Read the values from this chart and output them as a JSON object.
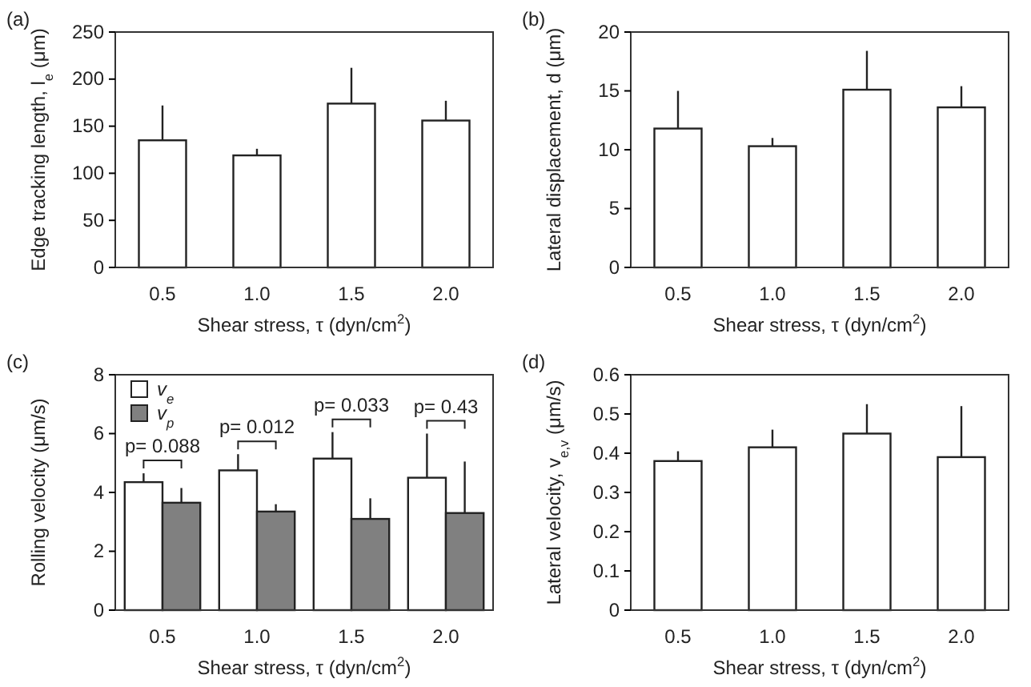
{
  "chart_data": [
    {
      "type": "bar",
      "categories": [
        "0.5",
        "1.0",
        "1.5",
        "2.0"
      ],
      "xlabel": "Shear stress, τ (dyn/cm$^{2}$)",
      "ylabel": "Edge tracking length, l$_{e}$ (μm)",
      "annotations": [
        "(a)"
      ],
      "ylim": [
        0,
        250
      ],
      "yticks": [
        0,
        50,
        100,
        150,
        200,
        250
      ],
      "grid": false,
      "legend": false,
      "series": [
        {
          "color": "#ffffff",
          "values": [
            135,
            119,
            174,
            156
          ],
          "errors": [
            [
              135,
              172
            ],
            [
              119,
              126
            ],
            [
              174,
              212
            ],
            [
              156,
              177
            ]
          ]
        }
      ]
    },
    {
      "type": "bar",
      "categories": [
        "0.5",
        "1.0",
        "1.5",
        "2.0"
      ],
      "xlabel": "Shear stress, τ (dyn/cm$^{2}$)",
      "ylabel": "Lateral displacement, d (μm)",
      "annotations": [
        "(b)"
      ],
      "ylim": [
        0,
        20
      ],
      "yticks": [
        0,
        5,
        10,
        15,
        20
      ],
      "grid": false,
      "legend": false,
      "series": [
        {
          "color": "#ffffff",
          "values": [
            11.8,
            10.3,
            15.1,
            13.6
          ],
          "errors": [
            [
              11.8,
              15.0
            ],
            [
              10.3,
              11.0
            ],
            [
              15.1,
              18.4
            ],
            [
              13.6,
              15.4
            ]
          ]
        }
      ]
    },
    {
      "type": "bar",
      "categories": [
        "0.5",
        "1.0",
        "1.5",
        "2.0"
      ],
      "xlabel": "Shear stress, τ (dyn/cm$^{2}$)",
      "ylabel": "Rolling velocity (μm/s)",
      "annotations": [
        "(c)",
        "p= 0.088",
        "p= 0.012",
        "p= 0.033",
        "p= 0.43"
      ],
      "ylim": [
        0,
        8
      ],
      "yticks": [
        0,
        2,
        4,
        6,
        8
      ],
      "grid": false,
      "legend": "top left",
      "series": [
        {
          "name": "v$_{e}$",
          "color": "#ffffff",
          "values": [
            4.35,
            4.75,
            5.15,
            4.5
          ],
          "errors": [
            [
              4.35,
              4.65
            ],
            [
              4.75,
              5.3
            ],
            [
              5.15,
              6.05
            ],
            [
              4.5,
              6.0
            ]
          ]
        },
        {
          "name": "v$_{p}$",
          "color": "#808080",
          "values": [
            3.65,
            3.35,
            3.1,
            3.3
          ],
          "errors": [
            [
              3.65,
              4.15
            ],
            [
              3.35,
              3.6
            ],
            [
              3.1,
              3.8
            ],
            [
              3.3,
              5.05
            ]
          ]
        }
      ]
    },
    {
      "type": "bar",
      "categories": [
        "0.5",
        "1.0",
        "1.5",
        "2.0"
      ],
      "xlabel": "Shear stress, τ (dyn/cm$^{2}$)",
      "ylabel": "Lateral velocity, v$_{e,v}$ (μm/s)",
      "annotations": [
        "(d)"
      ],
      "ylim": [
        0,
        0.6
      ],
      "yticks": [
        0,
        0.1,
        0.2,
        0.3,
        0.4,
        0.5,
        0.6
      ],
      "grid": false,
      "legend": false,
      "series": [
        {
          "color": "#ffffff",
          "values": [
            0.38,
            0.415,
            0.45,
            0.39
          ],
          "errors": [
            [
              0.38,
              0.405
            ],
            [
              0.415,
              0.46
            ],
            [
              0.45,
              0.525
            ],
            [
              0.39,
              0.52
            ]
          ]
        }
      ]
    }
  ]
}
